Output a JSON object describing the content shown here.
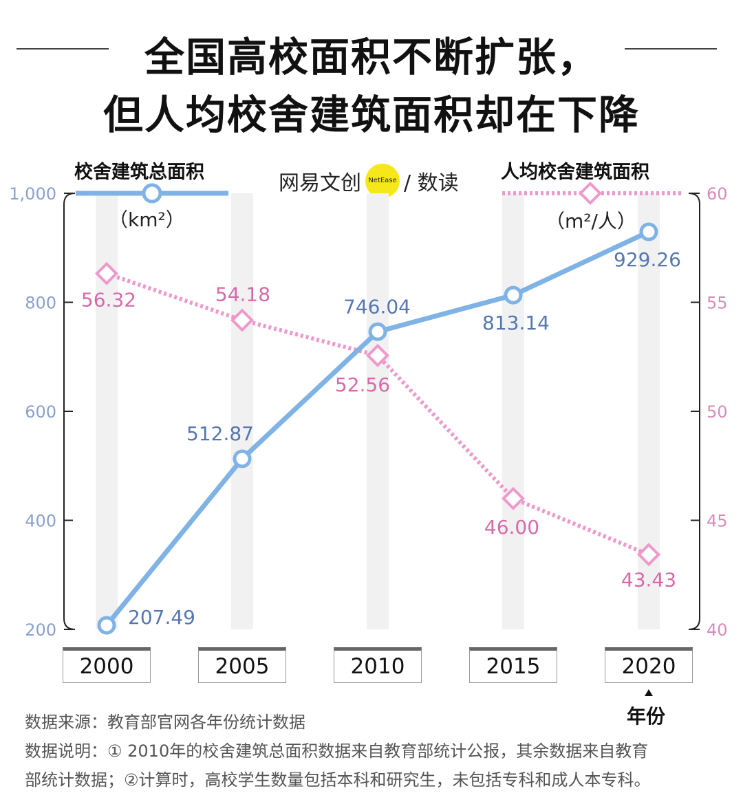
{
  "title": {
    "line1": "全国高校面积不断扩张，",
    "line2": "但人均校舍建筑面积却在下降"
  },
  "legend": {
    "left": {
      "label": "校舍建筑总面积",
      "unit": "（km²）",
      "color": "#7fb2e5"
    },
    "right": {
      "label": "人均校舍建筑面积",
      "unit": "（m²/人）",
      "color": "#ee99cc"
    }
  },
  "brand": {
    "name": "网易文创",
    "badge": "NetEase",
    "sub": "/ 数读"
  },
  "chart_data": {
    "type": "line",
    "categories": [
      "2000",
      "2005",
      "2010",
      "2015",
      "2020"
    ],
    "xlabel": "年份",
    "series": [
      {
        "name": "校舍建筑总面积",
        "axis": "left",
        "values": [
          207.49,
          512.87,
          746.04,
          813.14,
          929.26
        ],
        "labels": [
          "207.49",
          "512.87",
          "746.04",
          "813.14",
          "929.26"
        ],
        "style": "solid",
        "marker": "circle"
      },
      {
        "name": "人均校舍建筑面积",
        "axis": "right",
        "values": [
          56.32,
          54.18,
          52.56,
          46.0,
          43.43
        ],
        "labels": [
          "56.32",
          "54.18",
          "52.56",
          "46.00",
          "43.43"
        ],
        "style": "dotted",
        "marker": "diamond"
      }
    ],
    "y_left": {
      "ylim": [
        200,
        1000
      ],
      "ticks": [
        "200",
        "400",
        "600",
        "800",
        "1,000"
      ],
      "tick_values": [
        200,
        400,
        600,
        800,
        1000
      ]
    },
    "y_right": {
      "ylim": [
        40,
        60
      ],
      "ticks": [
        "40",
        "45",
        "50",
        "55",
        "60"
      ],
      "tick_values": [
        40,
        45,
        50,
        55,
        60
      ]
    },
    "colors": {
      "area": "#7fb2e5",
      "area_label": "#5577b0",
      "percap": "#ee99cc",
      "percap_label": "#d66aa8",
      "left_tick": "#8aa0cc",
      "right_tick": "#d98ab8",
      "band": "#f1f1f1"
    }
  },
  "notes": {
    "source": "数据来源：教育部官网各年份统计数据",
    "desc1": "数据说明：① 2010年的校舍建筑总面积数据来自教育部统计公报，其余数据来自教育",
    "desc2": "部统计数据；②计算时，高校学生数量包括本科和研究生，未包括专科和成人本专科。"
  }
}
